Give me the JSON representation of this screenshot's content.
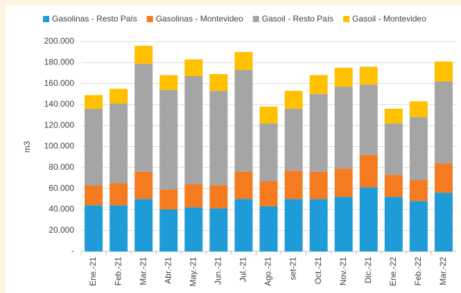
{
  "chart_data": {
    "type": "stacked_bar",
    "y_axis_label": "m3",
    "categories": [
      "Ene.-21",
      "Feb.-21",
      "Mar.-21",
      "Abr.-21",
      "May.-21",
      "Jun.-21",
      "Jul.-21",
      "Ago.-21",
      "set-21",
      "Oct.-21",
      "Nov.-21",
      "Dic.-21",
      "Ene.-22",
      "Feb.-22",
      "Mar.-22"
    ],
    "series": [
      {
        "name": "Gasolinas - Resto País",
        "color": "#1f9bd7",
        "values": [
          44000,
          44000,
          50000,
          40000,
          42000,
          41000,
          50000,
          43000,
          50000,
          50000,
          52000,
          61000,
          52000,
          48000,
          56000
        ]
      },
      {
        "name": "Gasolinas - Montevideo",
        "color": "#f47b20",
        "values": [
          19000,
          21000,
          26000,
          19000,
          22000,
          22000,
          26000,
          24000,
          27000,
          26000,
          27000,
          31000,
          21000,
          20000,
          28000
        ]
      },
      {
        "name": "Gasoil - Resto País",
        "color": "#a5a5a5",
        "values": [
          73000,
          76000,
          103000,
          95000,
          103000,
          90000,
          97000,
          55000,
          59000,
          74000,
          78000,
          67000,
          49000,
          60000,
          78000
        ]
      },
      {
        "name": "Gasoil - Montevideo",
        "color": "#ffc000",
        "values": [
          13000,
          14000,
          17000,
          14000,
          16000,
          16000,
          17000,
          16000,
          17000,
          18000,
          18000,
          17000,
          14000,
          15000,
          19000
        ]
      }
    ],
    "ylim": [
      0,
      200000
    ],
    "yticks": [
      {
        "value": 0,
        "label": "-"
      },
      {
        "value": 20000,
        "label": "20.000"
      },
      {
        "value": 40000,
        "label": "40.000"
      },
      {
        "value": 60000,
        "label": "60.000"
      },
      {
        "value": 80000,
        "label": "80.000"
      },
      {
        "value": 100000,
        "label": "100.000"
      },
      {
        "value": 120000,
        "label": "120.000"
      },
      {
        "value": 140000,
        "label": "140.000"
      },
      {
        "value": 160000,
        "label": "160.000"
      },
      {
        "value": 180000,
        "label": "180.000"
      },
      {
        "value": 200000,
        "label": "200.000"
      }
    ],
    "grid": true,
    "legend": "top"
  }
}
